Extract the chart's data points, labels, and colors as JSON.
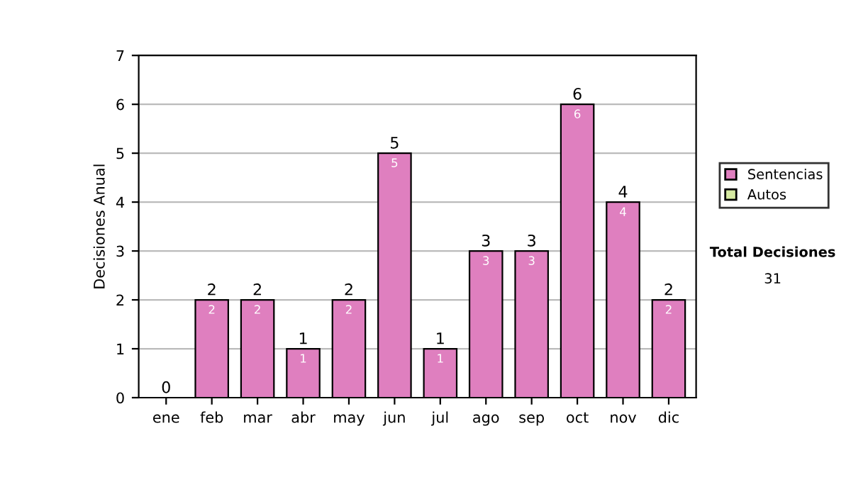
{
  "chart_data": {
    "type": "bar",
    "stacked": true,
    "ylabel": "Decisiones Anual",
    "categories": [
      "ene",
      "feb",
      "mar",
      "abr",
      "may",
      "jun",
      "jul",
      "ago",
      "sep",
      "oct",
      "nov",
      "dic"
    ],
    "series": [
      {
        "name": "Sentencias",
        "color": "#df7fbf",
        "values": [
          0,
          2,
          2,
          1,
          2,
          5,
          1,
          3,
          3,
          6,
          4,
          2
        ],
        "value_labels": [
          null,
          "2",
          "2",
          "1",
          "2",
          "5",
          "1",
          "3",
          "3",
          "6",
          "4",
          "2"
        ]
      },
      {
        "name": "Autos",
        "color": "#d6eaa2",
        "values": [
          0,
          0,
          0,
          0,
          0,
          0,
          0,
          0,
          0,
          0,
          0,
          0
        ]
      }
    ],
    "totals": [
      "0",
      "2",
      "2",
      "1",
      "2",
      "5",
      "1",
      "3",
      "3",
      "6",
      "4",
      "2"
    ],
    "ylim": [
      0,
      7
    ],
    "yticks": [
      0,
      1,
      2,
      3,
      4,
      5,
      6,
      7
    ],
    "grid": "y",
    "legend": "right",
    "annotations": [
      "Total Decisiones",
      "31"
    ]
  }
}
